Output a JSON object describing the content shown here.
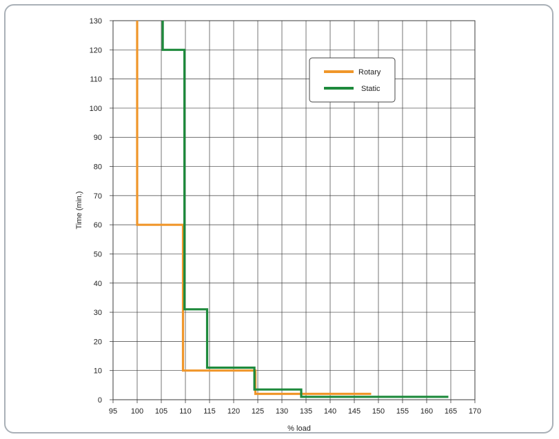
{
  "chart_data": {
    "type": "line",
    "step": true,
    "xlabel": "% load",
    "ylabel": "Time (min.)",
    "xlim": [
      95,
      170
    ],
    "ylim": [
      0,
      130
    ],
    "x_ticks": [
      95,
      100,
      105,
      110,
      115,
      120,
      125,
      130,
      135,
      140,
      145,
      150,
      155,
      160,
      165,
      170
    ],
    "y_ticks": [
      0,
      10,
      20,
      30,
      40,
      50,
      60,
      70,
      80,
      90,
      100,
      110,
      120,
      130
    ],
    "grid": true,
    "legend_position": "top-right",
    "series": [
      {
        "name": "Rotary",
        "color": "#f0962a",
        "points": [
          [
            100,
            130
          ],
          [
            100,
            60
          ],
          [
            109.5,
            60
          ],
          [
            109.5,
            10
          ],
          [
            124.5,
            10
          ],
          [
            124.5,
            2
          ],
          [
            148.5,
            2
          ]
        ]
      },
      {
        "name": "Static",
        "color": "#1e8a3c",
        "points": [
          [
            105.3,
            130
          ],
          [
            105.3,
            120
          ],
          [
            109.8,
            120
          ],
          [
            109.8,
            31
          ],
          [
            114.5,
            31
          ],
          [
            114.5,
            11
          ],
          [
            124.3,
            11
          ],
          [
            124.3,
            3.5
          ],
          [
            134,
            3.5
          ],
          [
            134,
            1
          ],
          [
            164.5,
            1
          ]
        ]
      }
    ]
  }
}
